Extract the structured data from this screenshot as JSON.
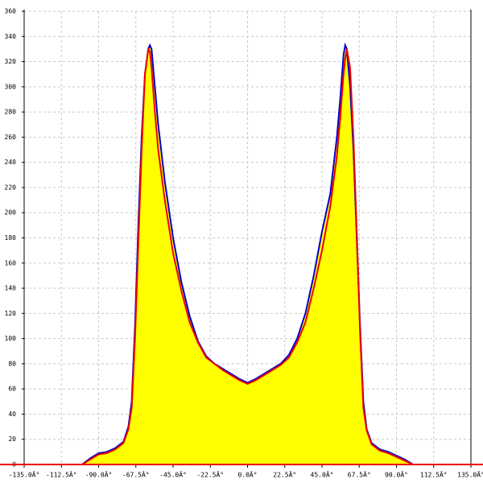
{
  "chart_data": {
    "type": "line",
    "x": [
      -100,
      -95,
      -90,
      -85,
      -80,
      -75,
      -72,
      -70,
      -68,
      -66,
      -64,
      -62,
      -60,
      -59,
      -58,
      -56,
      -54,
      -50,
      -45,
      -40,
      -35,
      -30,
      -25,
      -20,
      -15,
      -10,
      -5,
      0,
      5,
      10,
      15,
      20,
      25,
      30,
      35,
      40,
      45,
      50,
      54,
      56,
      58,
      59,
      60,
      62,
      64,
      66,
      68,
      70,
      72,
      75,
      80,
      85,
      90,
      95,
      100
    ],
    "series": [
      {
        "color": "#0000cc",
        "fill": "#ffff00",
        "values": [
          0,
          5,
          9,
          10,
          13,
          18,
          30,
          50,
          110,
          190,
          260,
          310,
          330,
          333,
          330,
          300,
          270,
          225,
          180,
          145,
          118,
          98,
          86,
          80,
          76,
          72,
          68,
          65,
          68,
          72,
          76,
          80,
          87,
          100,
          120,
          150,
          185,
          215,
          260,
          290,
          325,
          333,
          330,
          300,
          250,
          180,
          110,
          50,
          28,
          17,
          12,
          10,
          7,
          4,
          0
        ]
      },
      {
        "color": "#ee0000",
        "values": [
          0,
          4,
          8,
          9,
          12,
          17,
          28,
          45,
          100,
          175,
          250,
          310,
          330,
          328,
          315,
          280,
          250,
          210,
          168,
          138,
          113,
          97,
          85,
          80,
          75,
          71,
          67,
          64,
          67,
          71,
          75,
          79,
          85,
          97,
          113,
          140,
          170,
          205,
          245,
          275,
          310,
          322,
          330,
          315,
          260,
          185,
          105,
          45,
          27,
          16,
          11,
          9,
          6,
          3,
          0
        ]
      }
    ],
    "xlim": [
      -135,
      135
    ],
    "xticks": [
      {
        "value": -135,
        "label": "-135.0Â°"
      },
      {
        "value": -112.5,
        "label": "-112.5Â°"
      },
      {
        "value": -90,
        "label": "-90.0Â°"
      },
      {
        "value": -67.5,
        "label": "-67.5Â°"
      },
      {
        "value": -45,
        "label": "-45.0Â°"
      },
      {
        "value": -22.5,
        "label": "-22.5Â°"
      },
      {
        "value": 0,
        "label": "0.0Â°"
      },
      {
        "value": 22.5,
        "label": "22.5Â°"
      },
      {
        "value": 45,
        "label": "45.0Â°"
      },
      {
        "value": 67.5,
        "label": "67.5Â°"
      },
      {
        "value": 90,
        "label": "90.0Â°"
      },
      {
        "value": 112.5,
        "label": "112.5Â°"
      },
      {
        "value": 135,
        "label": "135.0Â°"
      }
    ],
    "ylim": [
      0,
      360
    ],
    "yticks": [
      0,
      20,
      40,
      60,
      80,
      100,
      120,
      140,
      160,
      180,
      200,
      220,
      240,
      260,
      280,
      300,
      320,
      340,
      360
    ],
    "grid": true
  }
}
